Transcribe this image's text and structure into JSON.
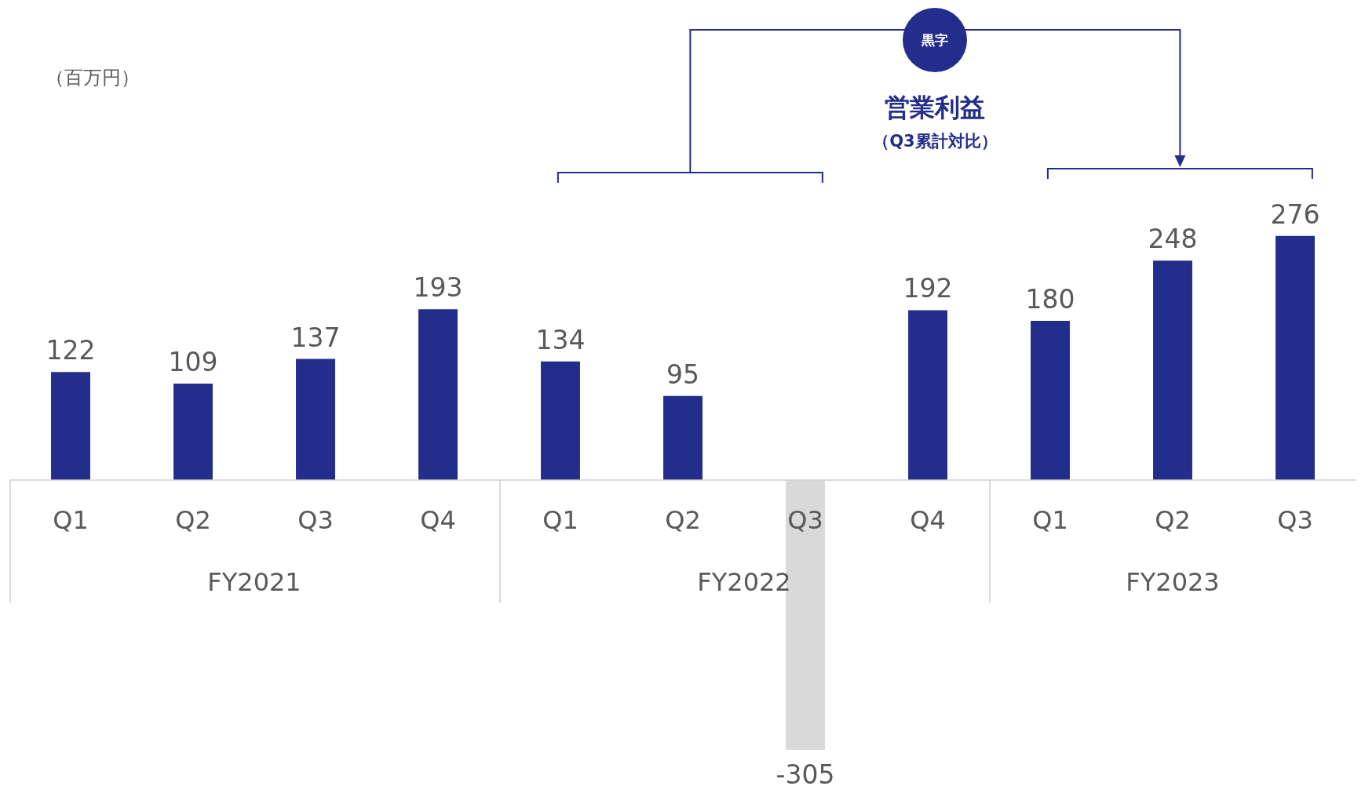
{
  "chart_data": {
    "type": "bar",
    "categories": [
      "Q1",
      "Q2",
      "Q3",
      "Q4",
      "Q1",
      "Q2",
      "Q3",
      "Q4",
      "Q1",
      "Q2",
      "Q3"
    ],
    "values": [
      122,
      109,
      137,
      193,
      134,
      95,
      -305,
      192,
      180,
      248,
      276
    ],
    "colors": [
      "#222d8c",
      "#222d8c",
      "#222d8c",
      "#222d8c",
      "#222d8c",
      "#222d8c",
      "#d9d9d9",
      "#222d8c",
      "#222d8c",
      "#222d8c",
      "#222d8c"
    ],
    "data_labels": true,
    "annotations": [
      "（百万円）",
      "黒字",
      "営業利益",
      "（Q3累計対比）",
      "FY2021",
      "FY2022",
      "FY2023"
    ]
  }
}
